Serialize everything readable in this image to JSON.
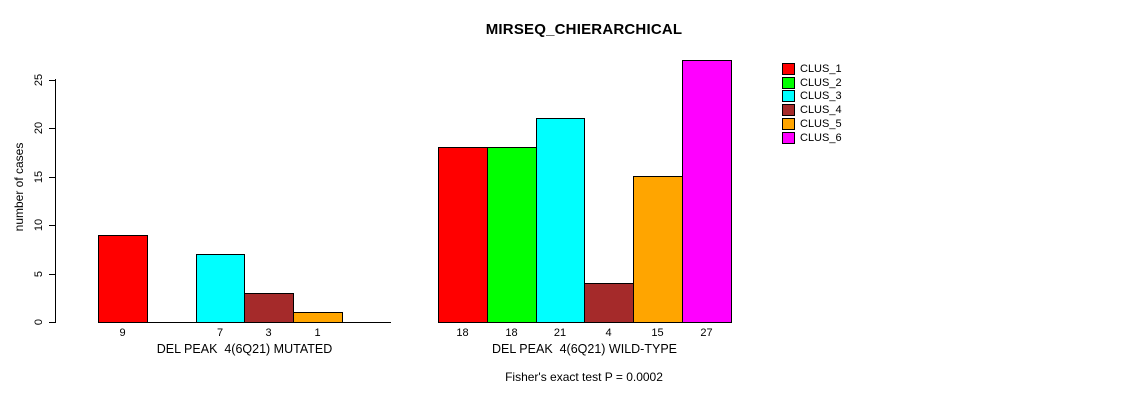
{
  "chart_data": {
    "type": "bar",
    "title": "MIRSEQ_CHIERARCHICAL",
    "ylabel": "number of cases",
    "xlabel": "",
    "yticks": [
      0,
      5,
      10,
      15,
      20,
      25
    ],
    "ylim": [
      0,
      28
    ],
    "grid": false,
    "legend_position": "right",
    "categories": [
      "CLUS_1",
      "CLUS_2",
      "CLUS_3",
      "CLUS_4",
      "CLUS_5",
      "CLUS_6"
    ],
    "colors": [
      "#ff0000",
      "#00ff00",
      "#00ffff",
      "#a52a2a",
      "#ffa500",
      "#ff00ff"
    ],
    "series": [
      {
        "name": "DEL PEAK  4(6Q21) MUTATED",
        "values": [
          9,
          0,
          7,
          3,
          1,
          0
        ]
      },
      {
        "name": "DEL PEAK  4(6Q21) WILD-TYPE",
        "values": [
          18,
          18,
          21,
          4,
          15,
          27
        ]
      }
    ],
    "groups": [
      {
        "label": "DEL PEAK  4(6Q21) MUTATED",
        "values": [
          9,
          0,
          7,
          3,
          1,
          0
        ]
      },
      {
        "label": "DEL PEAK  4(6Q21) WILD-TYPE",
        "values": [
          18,
          18,
          21,
          4,
          15,
          27
        ]
      }
    ],
    "bar_value_labels_shown": [
      "9",
      "7",
      "3",
      "1",
      "18",
      "18",
      "21",
      "4",
      "15",
      "27"
    ],
    "note": "Fisher's exact test P = 0.0002"
  }
}
